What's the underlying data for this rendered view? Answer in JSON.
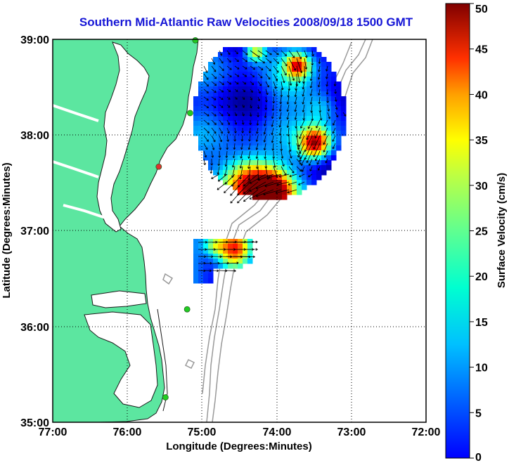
{
  "title": "Southern Mid-Atlantic Raw Velocities 2008/09/18 1500 GMT",
  "x_axis": {
    "label": "Longitude (Degrees:Minutes)",
    "ticks": [
      "77:00",
      "76:00",
      "75:00",
      "74:00",
      "73:00",
      "72:00"
    ]
  },
  "y_axis": {
    "label": "Latitude (Degrees:Minutes)",
    "ticks": [
      "39:00",
      "38:00",
      "37:00",
      "36:00",
      "35:00"
    ]
  },
  "colorbar": {
    "label": "Surface Velocity (cm/s)",
    "ticks": [
      "50",
      "45",
      "40",
      "35",
      "30",
      "25",
      "20",
      "15",
      "10",
      "5",
      "0"
    ],
    "range": [
      0,
      50
    ],
    "colormap": "jet"
  },
  "chart_data": {
    "type": "map-vector-field",
    "lon_range": [
      -77,
      -72
    ],
    "lat_range": [
      35,
      39
    ],
    "grid": "dotted",
    "land_color": "#5ce6a0",
    "coastline_color": "#1a1a1a",
    "bathymetry_color": "#999999",
    "stations": [
      {
        "lon": -75.09,
        "lat": 38.99,
        "color": "#22cc22"
      },
      {
        "lon": -75.16,
        "lat": 38.23,
        "color": "#22cc22"
      },
      {
        "lon": -75.58,
        "lat": 37.67,
        "color": "#e03030"
      },
      {
        "lon": -75.2,
        "lat": 36.18,
        "color": "#22cc22"
      },
      {
        "lon": -75.49,
        "lat": 35.26,
        "color": "#22cc22"
      }
    ],
    "velocity_regions": [
      {
        "region": "north",
        "lon_range": [
          -75.1,
          -72.95
        ],
        "lat_range": [
          37.4,
          39.0
        ],
        "speed_range_cm_s": [
          2,
          50
        ]
      },
      {
        "region": "south",
        "lon_range": [
          -75.1,
          -74.2
        ],
        "lat_range": [
          36.4,
          36.9
        ],
        "speed_range_cm_s": [
          5,
          45
        ]
      }
    ]
  }
}
